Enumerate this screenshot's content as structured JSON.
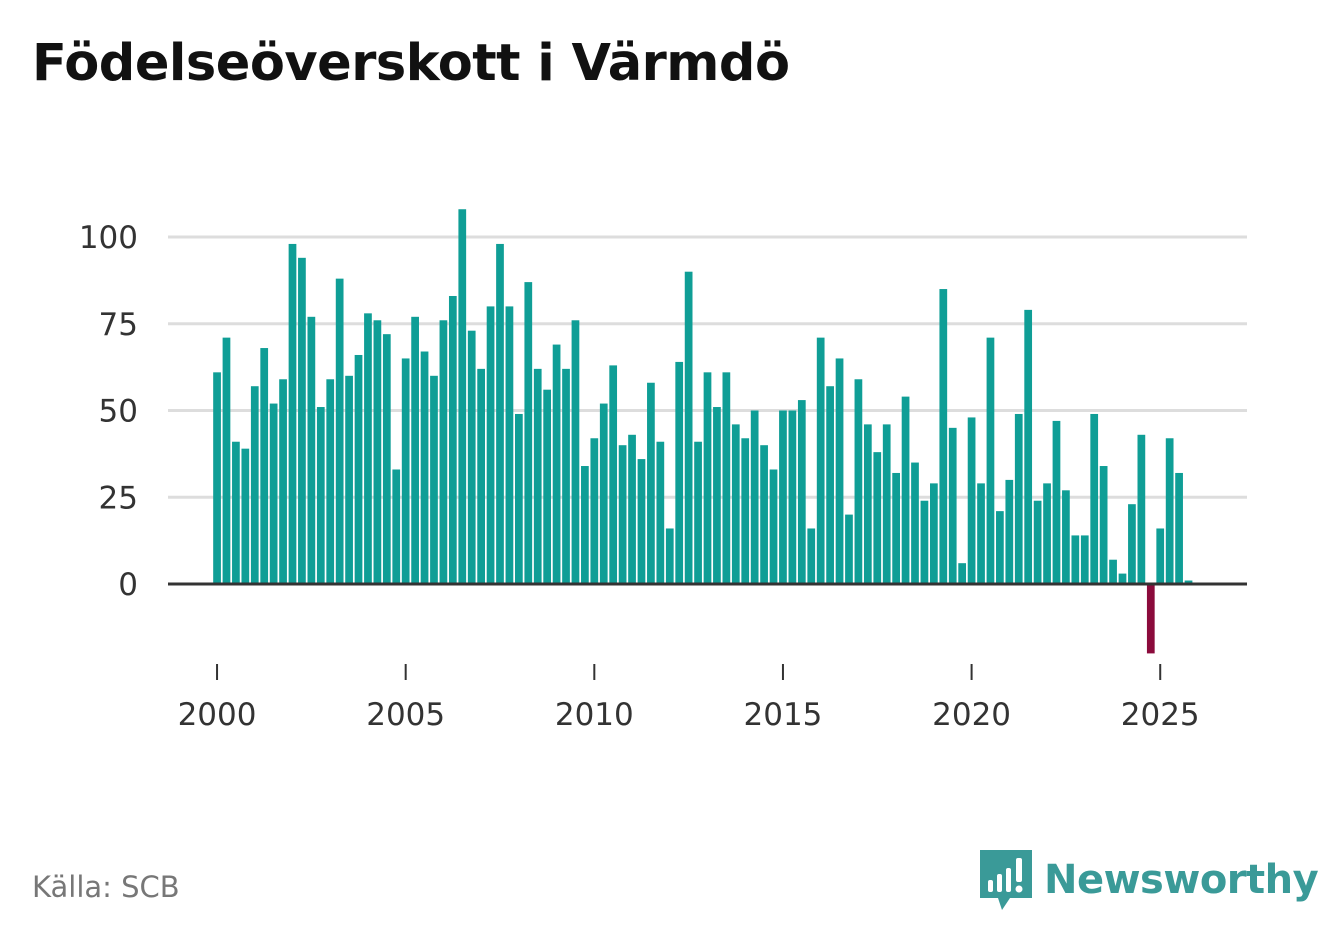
{
  "title": "Födelseöverskott i Värmdö",
  "source": "Källa: SCB",
  "brand": "Newsworthy",
  "colors": {
    "positive": "#0f9e96",
    "negative": "#8b0b3c",
    "grid": "#dddddd",
    "baseline": "#333333",
    "brand": "#3a9a98"
  },
  "chart_data": {
    "type": "bar",
    "title": "Födelseöverskott i Värmdö",
    "xlabel": "",
    "ylabel": "",
    "frequency": "monthly-quarterly",
    "x_start": 2000.0,
    "x_step": 0.25,
    "ylim": [
      -20,
      110
    ],
    "yticks": [
      0,
      25,
      50,
      75,
      100
    ],
    "xticks": [
      2000,
      2005,
      2010,
      2015,
      2020,
      2025
    ],
    "xlim": [
      1998.7,
      2027.3
    ],
    "grid": true,
    "values": [
      61,
      71,
      41,
      39,
      57,
      68,
      52,
      59,
      98,
      94,
      77,
      51,
      59,
      88,
      60,
      66,
      78,
      76,
      72,
      33,
      65,
      77,
      67,
      60,
      76,
      83,
      108,
      73,
      62,
      80,
      98,
      80,
      49,
      87,
      62,
      56,
      69,
      62,
      76,
      34,
      42,
      52,
      63,
      40,
      43,
      36,
      58,
      41,
      16,
      64,
      90,
      41,
      61,
      51,
      61,
      46,
      42,
      50,
      40,
      33,
      50,
      50,
      53,
      16,
      71,
      57,
      65,
      20,
      59,
      46,
      38,
      46,
      32,
      54,
      35,
      24,
      29,
      85,
      45,
      6,
      48,
      29,
      71,
      21,
      30,
      49,
      79,
      24,
      29,
      47,
      27,
      14,
      14,
      49,
      34,
      7,
      3,
      23,
      43,
      -20,
      16,
      42,
      32,
      1
    ]
  }
}
